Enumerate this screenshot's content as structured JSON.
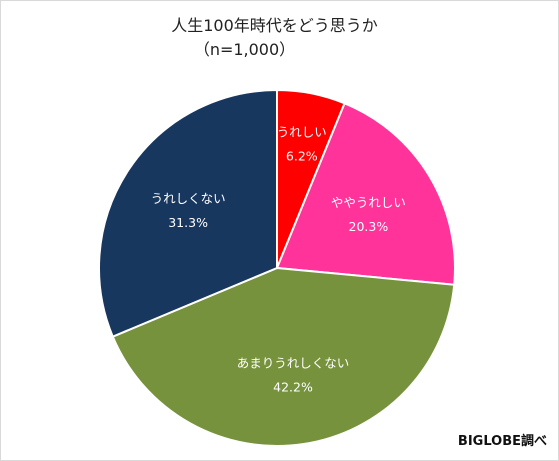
{
  "chart_data": {
    "type": "pie",
    "title": "人生100年時代をどう思うか",
    "subtitle": "（n=1,000）",
    "slices": [
      {
        "label": "うれしい",
        "value": 6.2,
        "value_text": "6.2%",
        "color": "#ff0000"
      },
      {
        "label": "ややうれしい",
        "value": 20.3,
        "value_text": "20.3%",
        "color": "#ff3399"
      },
      {
        "label": "あまりうれしくない",
        "value": 42.2,
        "value_text": "42.2%",
        "color": "#76923c"
      },
      {
        "label": "うれしくない",
        "value": 31.3,
        "value_text": "31.3%",
        "color": "#17375e"
      }
    ],
    "start_angle": "12 o'clock",
    "direction": "clockwise",
    "legend": "none",
    "source": "BIGLOBE調べ"
  }
}
